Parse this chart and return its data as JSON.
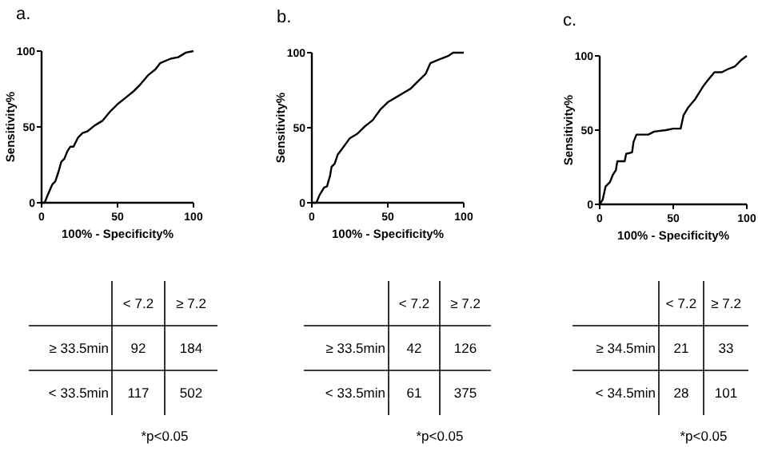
{
  "chart_data": [
    {
      "type": "line",
      "title": "a.",
      "xlabel": "100% - Specificity%",
      "ylabel": "Sensitivity%",
      "xlim": [
        0,
        100
      ],
      "ylim": [
        0,
        100
      ],
      "xticks": [
        0,
        50,
        100
      ],
      "yticks": [
        0,
        50,
        100
      ],
      "color": "#000000",
      "x": [
        0,
        2,
        4,
        7,
        9,
        11,
        13,
        15,
        17,
        19,
        21,
        24,
        27,
        30,
        35,
        40,
        45,
        50,
        55,
        60,
        65,
        70,
        75,
        78,
        85,
        90,
        95,
        100
      ],
      "values": [
        0,
        0,
        5,
        12,
        14,
        20,
        27,
        29,
        34,
        37,
        37,
        43,
        46,
        47,
        51,
        54,
        60,
        65,
        69,
        73,
        78,
        84,
        88,
        92,
        95,
        96,
        99,
        100
      ]
    },
    {
      "type": "line",
      "title": "b.",
      "xlabel": "100% - Specificity%",
      "ylabel": "Sensitivity%",
      "xlim": [
        0,
        100
      ],
      "ylim": [
        0,
        100
      ],
      "xticks": [
        0,
        50,
        100
      ],
      "yticks": [
        0,
        50,
        100
      ],
      "color": "#000000",
      "x": [
        0,
        3,
        5,
        8,
        10,
        12,
        13,
        15,
        17,
        20,
        25,
        30,
        35,
        40,
        45,
        50,
        55,
        60,
        65,
        70,
        75,
        78,
        85,
        90,
        93,
        100
      ],
      "values": [
        0,
        0,
        5,
        10,
        11,
        18,
        24,
        26,
        32,
        36,
        43,
        46,
        51,
        55,
        62,
        67,
        70,
        73,
        76,
        81,
        86,
        93,
        96,
        98,
        100,
        100
      ]
    },
    {
      "type": "line",
      "title": "c.",
      "xlabel": "100% - Specificity%",
      "ylabel": "Sensitivity%",
      "xlim": [
        0,
        100
      ],
      "ylim": [
        0,
        100
      ],
      "xticks": [
        0,
        50,
        100
      ],
      "yticks": [
        0,
        50,
        100
      ],
      "color": "#000000",
      "x": [
        0,
        2,
        4,
        7,
        9,
        11,
        12,
        17,
        18,
        22,
        23,
        25,
        33,
        37,
        45,
        50,
        55,
        57,
        60,
        65,
        70,
        73,
        78,
        83,
        87,
        92,
        96,
        100
      ],
      "values": [
        0,
        3,
        12,
        15,
        20,
        23,
        29,
        29,
        34,
        35,
        42,
        47,
        47,
        49,
        50,
        51,
        51,
        60,
        65,
        71,
        79,
        83,
        89,
        89,
        91,
        93,
        97,
        100
      ]
    },
    {
      "type": "heatmap",
      "categories": [
        "< 7.2",
        "≥ 7.2"
      ],
      "y_categories": [
        "≥ 33.5min",
        "< 33.5min"
      ],
      "cells": [
        [
          92,
          184
        ],
        [
          117,
          502
        ]
      ],
      "data_labels": true,
      "annotations": [
        "*p<0.05"
      ]
    },
    {
      "type": "heatmap",
      "categories": [
        "< 7.2",
        "≥ 7.2"
      ],
      "y_categories": [
        "≥ 33.5min",
        "< 33.5min"
      ],
      "cells": [
        [
          42,
          126
        ],
        [
          61,
          375
        ]
      ],
      "data_labels": true,
      "annotations": [
        "*p<0.05"
      ]
    },
    {
      "type": "heatmap",
      "categories": [
        "< 7.2",
        "≥ 7.2"
      ],
      "y_categories": [
        "≥ 34.5min",
        "< 34.5min"
      ],
      "cells": [
        [
          21,
          33
        ],
        [
          28,
          101
        ]
      ],
      "data_labels": true,
      "annotations": [
        "*p<0.05"
      ]
    }
  ]
}
